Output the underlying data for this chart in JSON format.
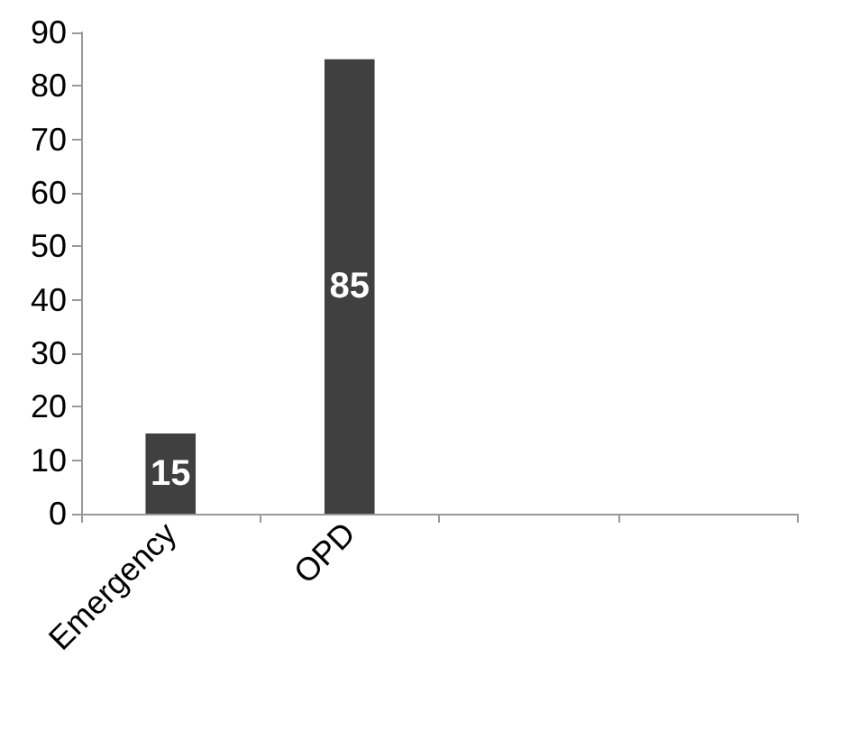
{
  "chart_data": {
    "type": "bar",
    "categories": [
      "Emergency",
      "OPD",
      null,
      null
    ],
    "values": [
      15,
      85,
      null,
      null
    ],
    "color": "#404040",
    "ylim": [
      0,
      90
    ],
    "yticks": [
      0,
      10,
      20,
      30,
      40,
      50,
      60,
      70,
      80,
      90
    ],
    "grid": false,
    "data_labels": true
  }
}
